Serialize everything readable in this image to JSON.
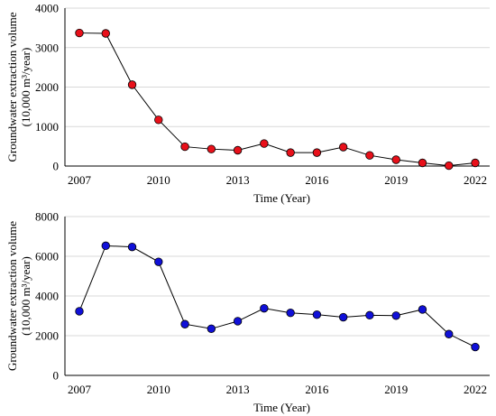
{
  "chart_data": [
    {
      "type": "line",
      "xlabel": "Time (Year)",
      "ylabel_line1": "Groundwater extraction volume",
      "ylabel_line2": "(10,000 m³/year)",
      "x": [
        2007,
        2008,
        2009,
        2010,
        2011,
        2012,
        2013,
        2014,
        2015,
        2016,
        2017,
        2018,
        2019,
        2020,
        2021,
        2022
      ],
      "series": [
        {
          "values": [
            3370,
            3360,
            2060,
            1170,
            490,
            430,
            400,
            570,
            340,
            340,
            480,
            270,
            160,
            80,
            10,
            80
          ],
          "color": "#e8101a"
        }
      ],
      "xticks": [
        "2007",
        "2010",
        "2013",
        "2016",
        "2019",
        "2022"
      ],
      "yticks": [
        "0",
        "1000",
        "2000",
        "3000",
        "4000"
      ],
      "xlim": [
        2007,
        2022
      ],
      "ylim": [
        0,
        4000
      ],
      "grid": true
    },
    {
      "type": "line",
      "xlabel": "Time (Year)",
      "ylabel_line1": "Groundwater extraction volume",
      "ylabel_line2": "(10,000 m³/year)",
      "x": [
        2007,
        2008,
        2009,
        2010,
        2011,
        2012,
        2013,
        2014,
        2015,
        2016,
        2017,
        2018,
        2019,
        2020,
        2021,
        2022
      ],
      "series": [
        {
          "values": [
            3230,
            6530,
            6470,
            5720,
            2580,
            2350,
            2730,
            3380,
            3150,
            3060,
            2930,
            3030,
            3010,
            3320,
            2080,
            1430
          ],
          "color": "#1010d8"
        }
      ],
      "xticks": [
        "2007",
        "2010",
        "2013",
        "2016",
        "2019",
        "2022"
      ],
      "yticks": [
        "0",
        "2000",
        "4000",
        "6000",
        "8000"
      ],
      "xlim": [
        2007,
        2022
      ],
      "ylim": [
        0,
        8000
      ],
      "grid": true
    }
  ]
}
